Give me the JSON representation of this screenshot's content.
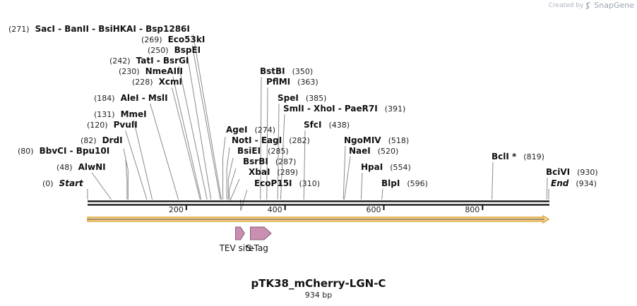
{
  "brand": {
    "prefix": "Created by",
    "name": "SnapGene"
  },
  "plasmid": {
    "name": "pTK38_mCherry-LGN-C",
    "length_label": "934 bp",
    "length": 934
  },
  "axis": {
    "ticks": [
      200,
      400,
      600,
      800
    ]
  },
  "colors": {
    "orf_fill": "#f8d9a0",
    "orf_stroke": "#d99a1a",
    "feature_fill": "#c98fb0",
    "feature_stroke": "#8e5a78"
  },
  "sites": [
    {
      "pos": 0,
      "names": [
        "Start"
      ],
      "italic": true
    },
    {
      "pos": 48,
      "names": [
        "AlwNI"
      ]
    },
    {
      "pos": 80,
      "names": [
        "BbvCI",
        "Bpu10I"
      ]
    },
    {
      "pos": 82,
      "names": [
        "DrdI"
      ]
    },
    {
      "pos": 120,
      "names": [
        "PvuII"
      ]
    },
    {
      "pos": 131,
      "names": [
        "MmeI"
      ]
    },
    {
      "pos": 184,
      "names": [
        "AleI",
        "MslI"
      ]
    },
    {
      "pos": 228,
      "names": [
        "XcmI"
      ]
    },
    {
      "pos": 230,
      "names": [
        "NmeAIII"
      ]
    },
    {
      "pos": 242,
      "names": [
        "TatI",
        "BsrGI"
      ]
    },
    {
      "pos": 250,
      "names": [
        "BspEI"
      ]
    },
    {
      "pos": 269,
      "names": [
        "Eco53kI"
      ]
    },
    {
      "pos": 271,
      "names": [
        "SacI",
        "BanII",
        "BsiHKAI",
        "Bsp1286I"
      ]
    },
    {
      "pos": 274,
      "names": [
        "AgeI"
      ]
    },
    {
      "pos": 282,
      "names": [
        "NotI",
        "EagI"
      ]
    },
    {
      "pos": 285,
      "names": [
        "BsiEI"
      ]
    },
    {
      "pos": 287,
      "names": [
        "BsrBI"
      ]
    },
    {
      "pos": 289,
      "names": [
        "XbaI"
      ]
    },
    {
      "pos": 310,
      "names": [
        "EcoP15I"
      ]
    },
    {
      "pos": 350,
      "names": [
        "BstBI"
      ]
    },
    {
      "pos": 363,
      "names": [
        "PflMI"
      ]
    },
    {
      "pos": 385,
      "names": [
        "SpeI"
      ]
    },
    {
      "pos": 391,
      "names": [
        "SmlI",
        "XhoI",
        "PaeR7I"
      ]
    },
    {
      "pos": 438,
      "names": [
        "SfcI"
      ]
    },
    {
      "pos": 518,
      "names": [
        "NgoMIV"
      ]
    },
    {
      "pos": 520,
      "names": [
        "NaeI"
      ]
    },
    {
      "pos": 554,
      "names": [
        "HpaI"
      ]
    },
    {
      "pos": 596,
      "names": [
        "BlpI"
      ]
    },
    {
      "pos": 819,
      "names": [
        "BclI *"
      ]
    },
    {
      "pos": 930,
      "names": [
        "BciVI"
      ]
    },
    {
      "pos": 934,
      "names": [
        "End"
      ],
      "italic": true
    }
  ],
  "features": [
    {
      "name": "TEV site",
      "start": 294,
      "end": 315
    },
    {
      "name": "S-Tag",
      "start": 324,
      "end": 369
    }
  ]
}
